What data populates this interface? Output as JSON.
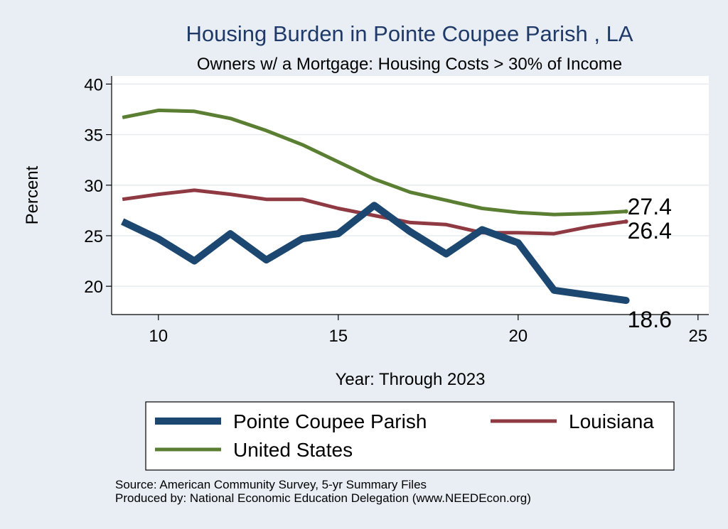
{
  "chart_data": {
    "type": "line",
    "title": "Housing Burden in Pointe Coupee Parish , LA",
    "subtitle": "Owners w/ a Mortgage: Housing Costs > 30% of Income",
    "xlabel": "Year: Through 2023",
    "ylabel": "Percent",
    "xlim": [
      8.7,
      25.3
    ],
    "ylim": [
      17.2,
      40.8
    ],
    "xticks": [
      10,
      15,
      20,
      25
    ],
    "yticks": [
      20,
      25,
      30,
      35,
      40
    ],
    "grid": true,
    "legend_position": "bottom",
    "x": [
      9,
      10,
      11,
      12,
      13,
      14,
      15,
      16,
      17,
      18,
      19,
      20,
      21,
      22,
      23
    ],
    "series": [
      {
        "name": "Pointe Coupee Parish",
        "color": "#1c4770",
        "end_label": "18.6",
        "values": [
          26.4,
          24.7,
          22.5,
          25.2,
          22.6,
          24.7,
          25.2,
          28.0,
          25.4,
          23.2,
          25.6,
          24.3,
          19.6,
          19.1,
          18.6
        ]
      },
      {
        "name": "Louisiana",
        "color": "#8f3a42",
        "end_label": "26.4",
        "values": [
          28.6,
          29.1,
          29.5,
          29.1,
          28.6,
          28.6,
          27.7,
          27.0,
          26.3,
          26.1,
          25.3,
          25.3,
          25.2,
          25.9,
          26.4
        ]
      },
      {
        "name": "United States",
        "color": "#5a7e32",
        "end_label": "27.4",
        "values": [
          36.7,
          37.4,
          37.3,
          36.6,
          35.4,
          34.0,
          32.3,
          30.6,
          29.3,
          28.5,
          27.7,
          27.3,
          27.1,
          27.2,
          27.4
        ]
      }
    ]
  },
  "notes": [
    "Source: American Community Survey, 5-yr Summary Files",
    "Produced by: National Economic Education Delegation (www.NEEDEcon.org)"
  ]
}
